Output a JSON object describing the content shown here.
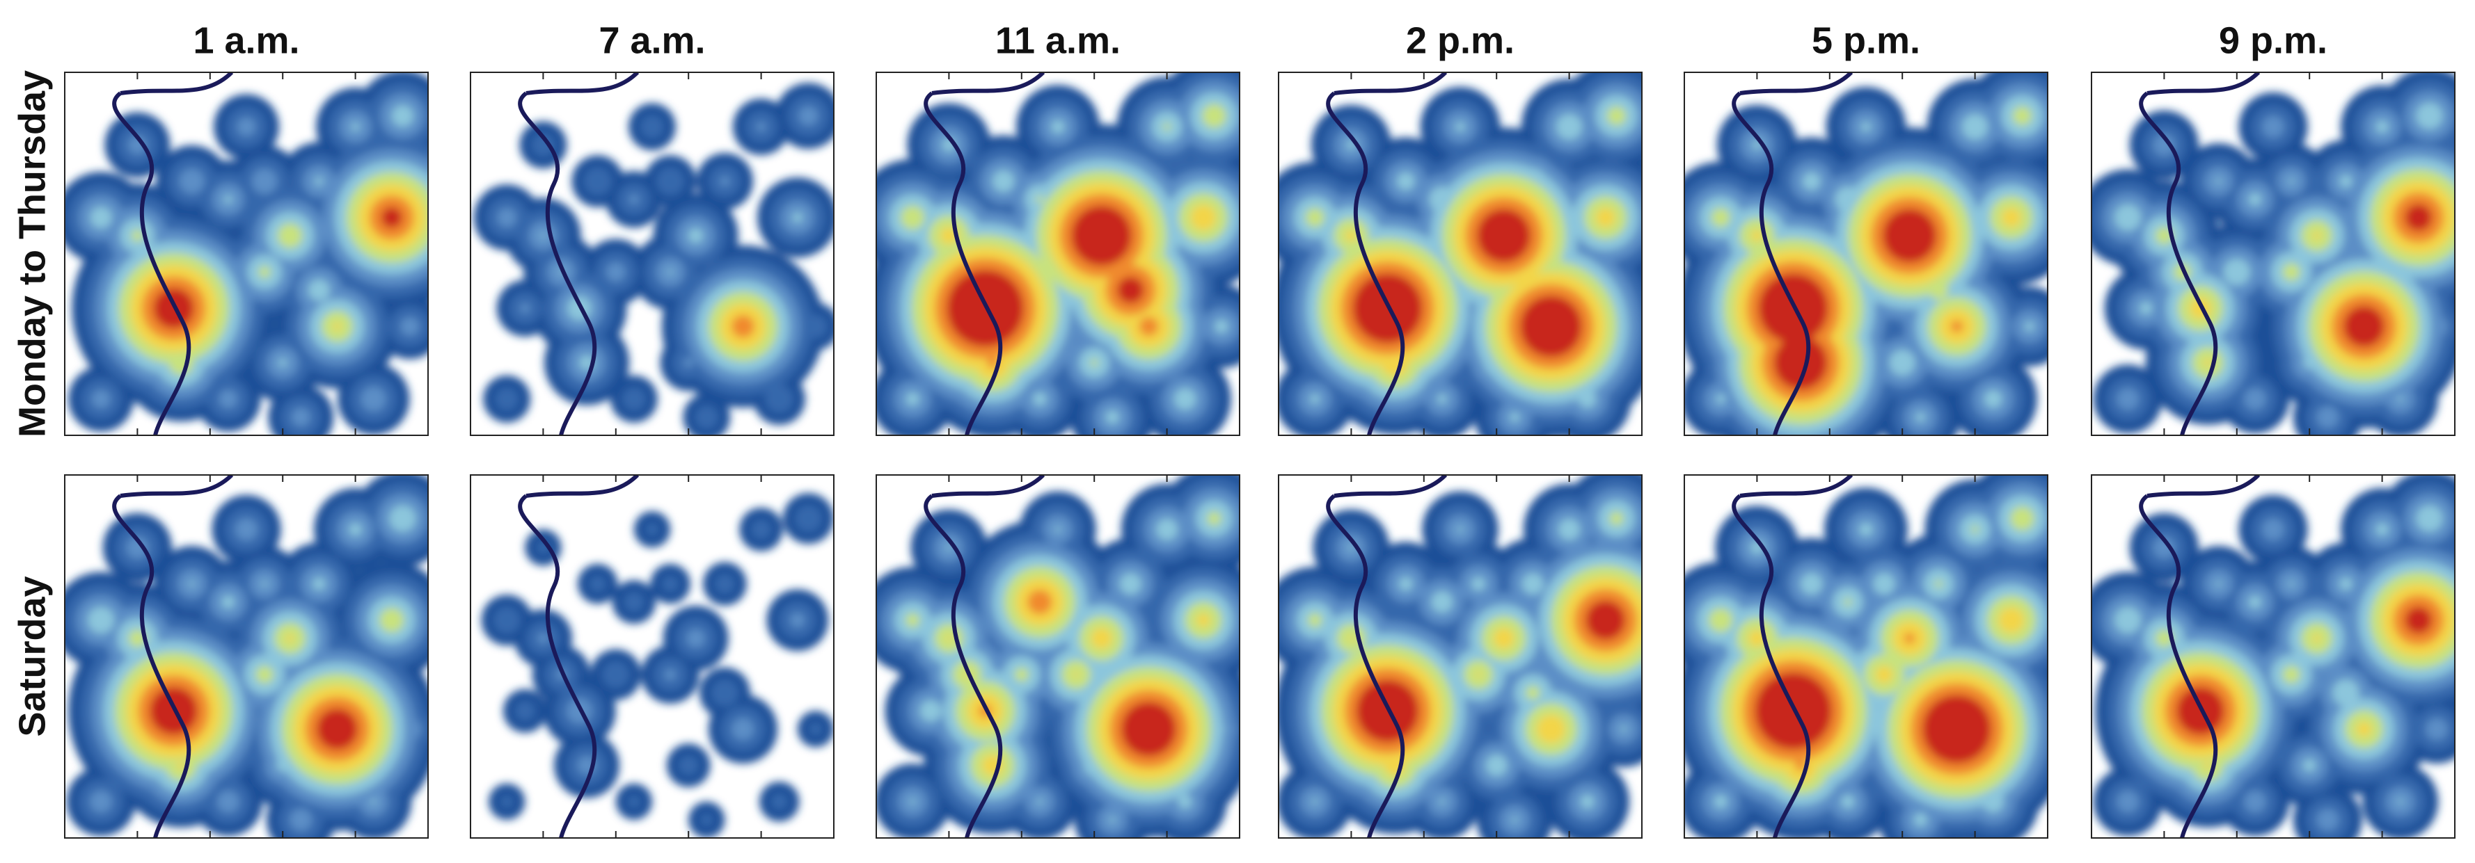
{
  "column_titles": [
    "1 a.m.",
    "7 a.m.",
    "11 a.m.",
    "2 p.m.",
    "5 p.m.",
    "9 p.m."
  ],
  "row_labels": [
    "Monday to Thursday",
    "Saturday"
  ]
}
